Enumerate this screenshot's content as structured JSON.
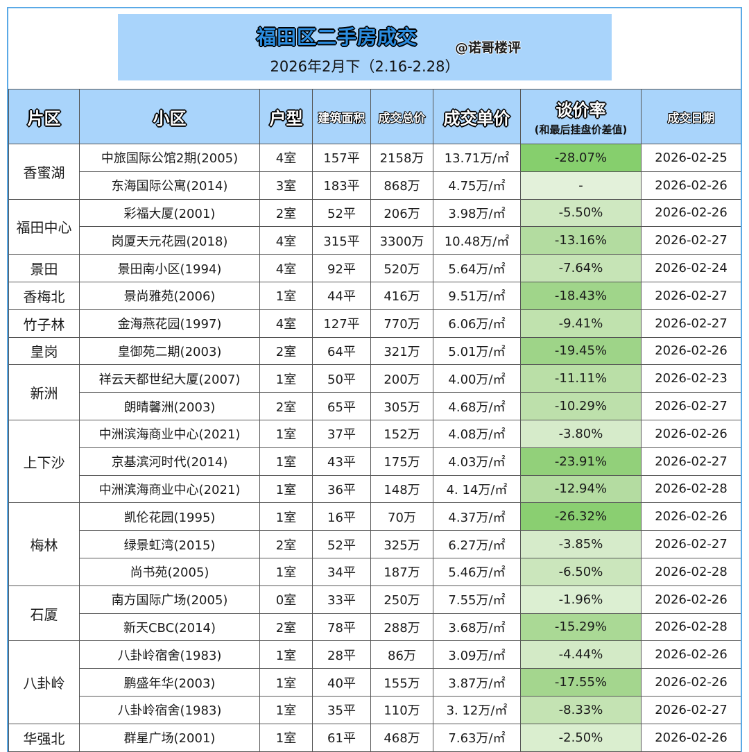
{
  "header": {
    "title": "福田区二手房成交",
    "handle": "@诺哥楼评",
    "subtitle": "2026年2月下（2.16-2.28）"
  },
  "columns": {
    "area": "片区",
    "community": "小区",
    "layout": "户型",
    "size": "建筑面积",
    "total": "成交总价",
    "unit": "成交单价",
    "discount": "谈价率",
    "discount_note": "(和最后挂盘价差值)",
    "date": "成交日期"
  },
  "colors": {
    "header_bg": "#a9d4fb",
    "frame": "#5aa9e6"
  },
  "groups": [
    {
      "area": "香蜜湖",
      "rows": [
        {
          "community": "中旅国际公馆2期(2005)",
          "layout": "4室",
          "size": "157平",
          "total": "2158万",
          "unit": "13.71万/㎡",
          "discount": "-28.07%",
          "date": "2026-02-25",
          "shade": "#86cf6d"
        },
        {
          "community": "东海国际公寓(2014)",
          "layout": "3室",
          "size": "183平",
          "total": "868万",
          "unit": "4.75万/㎡",
          "discount": "-",
          "date": "2026-02-26",
          "shade": "#e3f1da"
        }
      ]
    },
    {
      "area": "福田中心",
      "rows": [
        {
          "community": "彩福大厦(2001)",
          "layout": "2室",
          "size": "52平",
          "total": "206万",
          "unit": "3.98万/㎡",
          "discount": "-5.50%",
          "date": "2026-02-26",
          "shade": "#cfe8c1"
        },
        {
          "community": "岗厦天元花园(2018)",
          "layout": "4室",
          "size": "315平",
          "total": "3300万",
          "unit": "10.48万/㎡",
          "discount": "-13.16%",
          "date": "2026-02-27",
          "shade": "#b3dca0"
        }
      ]
    },
    {
      "area": "景田",
      "rows": [
        {
          "community": "景田南小区(1994)",
          "layout": "4室",
          "size": "92平",
          "total": "520万",
          "unit": "5.64万/㎡",
          "discount": "-7.64%",
          "date": "2026-02-24",
          "shade": "#c6e4b6"
        }
      ]
    },
    {
      "area": "香梅北",
      "rows": [
        {
          "community": "景尚雅苑(2006)",
          "layout": "1室",
          "size": "44平",
          "total": "416万",
          "unit": "9.51万/㎡",
          "discount": "-18.43%",
          "date": "2026-02-27",
          "shade": "#a0d58a"
        }
      ]
    },
    {
      "area": "竹子林",
      "rows": [
        {
          "community": "金海燕花园(1997)",
          "layout": "4室",
          "size": "127平",
          "total": "770万",
          "unit": "6.06万/㎡",
          "discount": "-9.41%",
          "date": "2026-02-27",
          "shade": "#c0e2ae"
        }
      ]
    },
    {
      "area": "皇岗",
      "rows": [
        {
          "community": "皇御苑二期(2003)",
          "layout": "2室",
          "size": "64平",
          "total": "321万",
          "unit": "5.01万/㎡",
          "discount": "-19.45%",
          "date": "2026-02-26",
          "shade": "#9ed488"
        }
      ]
    },
    {
      "area": "新洲",
      "rows": [
        {
          "community": "祥云天都世纪大厦(2007)",
          "layout": "1室",
          "size": "50平",
          "total": "200万",
          "unit": "4.00万/㎡",
          "discount": "-11.11%",
          "date": "2026-02-23",
          "shade": "#badfa7"
        },
        {
          "community": "朗晴馨洲(2003)",
          "layout": "2室",
          "size": "65平",
          "total": "305万",
          "unit": "4.68万/㎡",
          "discount": "-10.29%",
          "date": "2026-02-27",
          "shade": "#bde0ab"
        }
      ]
    },
    {
      "area": "上下沙",
      "rows": [
        {
          "community": "中洲滨海商业中心(2021)",
          "layout": "1室",
          "size": "37平",
          "total": "152万",
          "unit": "4.08万/㎡",
          "discount": "-3.80%",
          "date": "2026-02-26",
          "shade": "#d6ebca"
        },
        {
          "community": "京基滨河时代(2014)",
          "layout": "1室",
          "size": "43平",
          "total": "175万",
          "unit": "4.03万/㎡",
          "discount": "-23.91%",
          "date": "2026-02-27",
          "shade": "#92d07a"
        },
        {
          "community": "中洲滨海商业中心(2021)",
          "layout": "1室",
          "size": "36平",
          "total": "148万",
          "unit": "4. 14万/㎡",
          "discount": "-12.94%",
          "date": "2026-02-28",
          "shade": "#b4dca1"
        }
      ]
    },
    {
      "area": "梅林",
      "rows": [
        {
          "community": "凯伦花园(1995)",
          "layout": "1室",
          "size": "16平",
          "total": "70万",
          "unit": "4.37万/㎡",
          "discount": "-26.32%",
          "date": "2026-02-26",
          "shade": "#8acf71"
        },
        {
          "community": "绿景虹湾(2015)",
          "layout": "2室",
          "size": "52平",
          "total": "325万",
          "unit": "6.27万/㎡",
          "discount": "-3.85%",
          "date": "2026-02-27",
          "shade": "#d6ebca"
        },
        {
          "community": "尚书苑(2005)",
          "layout": "1室",
          "size": "34平",
          "total": "187万",
          "unit": "5.46万/㎡",
          "discount": "-6.50%",
          "date": "2026-02-28",
          "shade": "#cbe6bc"
        }
      ]
    },
    {
      "area": "石厦",
      "rows": [
        {
          "community": "南方国际广场(2005)",
          "layout": "0室",
          "size": "33平",
          "total": "250万",
          "unit": "7.55万/㎡",
          "discount": "-1.96%",
          "date": "2026-02-26",
          "shade": "#dcefd2"
        },
        {
          "community": "新天CBC(2014)",
          "layout": "2室",
          "size": "78平",
          "total": "288万",
          "unit": "3.68万/㎡",
          "discount": "-15.29%",
          "date": "2026-02-28",
          "shade": "#aad995"
        }
      ]
    },
    {
      "area": "八卦岭",
      "rows": [
        {
          "community": "八卦岭宿舍(1983)",
          "layout": "1室",
          "size": "28平",
          "total": "86万",
          "unit": "3.09万/㎡",
          "discount": "-4.44%",
          "date": "2026-02-26",
          "shade": "#d3eac6"
        },
        {
          "community": "鹏盛年华(2003)",
          "layout": "1室",
          "size": "40平",
          "total": "155万",
          "unit": "3.87万/㎡",
          "discount": "-17.55%",
          "date": "2026-02-26",
          "shade": "#a4d68e"
        },
        {
          "community": "八卦岭宿舍(1983)",
          "layout": "1室",
          "size": "35平",
          "total": "110万",
          "unit": "3. 12万/㎡",
          "discount": "-8.33%",
          "date": "2026-02-27",
          "shade": "#c4e3b3"
        }
      ]
    },
    {
      "area": "华强北",
      "rows": [
        {
          "community": "群星广场(2001)",
          "layout": "1室",
          "size": "61平",
          "total": "468万",
          "unit": "7.63万/㎡",
          "discount": "-2.50%",
          "date": "2026-02-26",
          "shade": "#daeecf"
        }
      ]
    }
  ]
}
